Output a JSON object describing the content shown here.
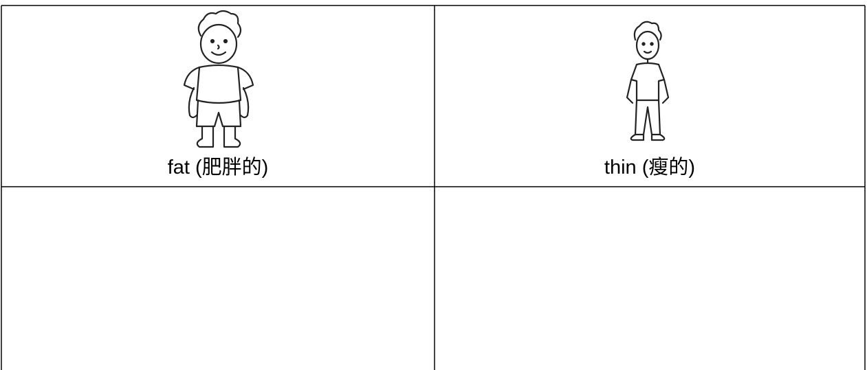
{
  "table": {
    "rows": [
      [
        "fat (肥胖的)",
        "thin (瘦的)"
      ],
      [
        null,
        null
      ]
    ]
  }
}
